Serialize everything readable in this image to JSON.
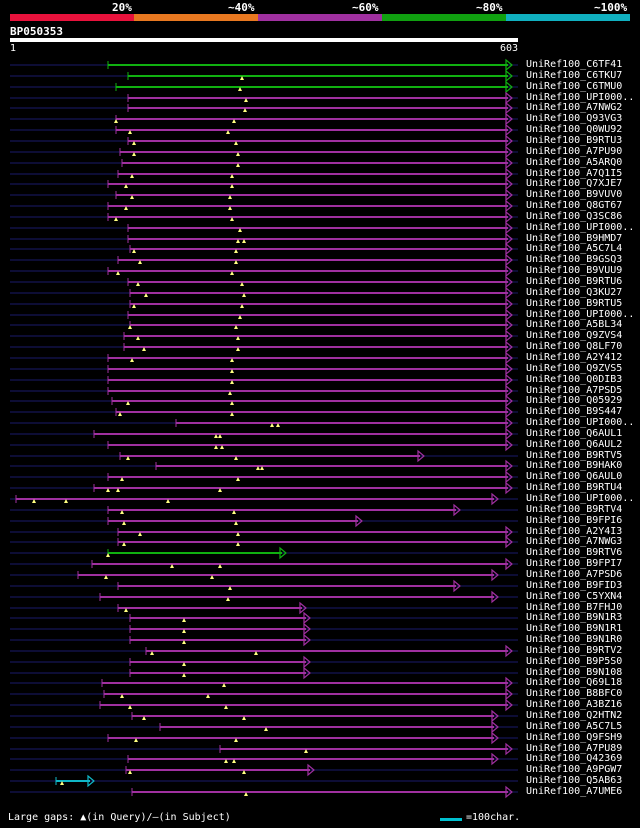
{
  "legend": {
    "labels": [
      "20%",
      "~40%",
      "~60%",
      "~80%",
      "~100%"
    ],
    "colors": [
      "#e8123c",
      "#e87820",
      "#a030a0",
      "#10a010",
      "#10b0c0"
    ]
  },
  "query": {
    "name": "BP050353",
    "start": "1",
    "end": "603"
  },
  "hits": [
    {
      "label": "UniRef100_C6TF41",
      "color": "green"
    },
    {
      "label": "UniRef100_C6TKU7",
      "color": "green"
    },
    {
      "label": "UniRef100_C6TMU0",
      "color": "green"
    },
    {
      "label": "UniRef100_UPI000..",
      "color": "purple"
    },
    {
      "label": "UniRef100_A7NWG2",
      "color": "purple"
    },
    {
      "label": "UniRef100_Q93VG3",
      "color": "purple"
    },
    {
      "label": "UniRef100_Q0WU92",
      "color": "purple"
    },
    {
      "label": "UniRef100_B9RTU3",
      "color": "purple"
    },
    {
      "label": "UniRef100_A7PU90",
      "color": "purple"
    },
    {
      "label": "UniRef100_A5ARQ0",
      "color": "purple"
    },
    {
      "label": "UniRef100_A7Q1I5",
      "color": "purple"
    },
    {
      "label": "UniRef100_Q7XJE7",
      "color": "purple"
    },
    {
      "label": "UniRef100_B9VUV0",
      "color": "purple"
    },
    {
      "label": "UniRef100_Q8GT67",
      "color": "purple"
    },
    {
      "label": "UniRef100_Q3SC86",
      "color": "purple"
    },
    {
      "label": "UniRef100_UPI000..",
      "color": "purple"
    },
    {
      "label": "UniRef100_B9HMD7",
      "color": "purple"
    },
    {
      "label": "UniRef100_A5C7L4",
      "color": "purple"
    },
    {
      "label": "UniRef100_B9GSQ3",
      "color": "purple"
    },
    {
      "label": "UniRef100_B9VUU9",
      "color": "purple"
    },
    {
      "label": "UniRef100_B9RTU6",
      "color": "purple"
    },
    {
      "label": "UniRef100_Q3KU27",
      "color": "purple"
    },
    {
      "label": "UniRef100_B9RTU5",
      "color": "purple"
    },
    {
      "label": "UniRef100_UPI000..",
      "color": "purple"
    },
    {
      "label": "UniRef100_A5BL34",
      "color": "purple"
    },
    {
      "label": "UniRef100_Q9ZVS4",
      "color": "purple"
    },
    {
      "label": "UniRef100_Q8LF70",
      "color": "purple"
    },
    {
      "label": "UniRef100_A2Y412",
      "color": "purple"
    },
    {
      "label": "UniRef100_Q9ZVS5",
      "color": "purple"
    },
    {
      "label": "UniRef100_Q0DIB3",
      "color": "purple"
    },
    {
      "label": "UniRef100_A7PSD5",
      "color": "purple"
    },
    {
      "label": "UniRef100_Q05929",
      "color": "purple"
    },
    {
      "label": "UniRef100_B9S447",
      "color": "purple"
    },
    {
      "label": "UniRef100_UPI000..",
      "color": "purple"
    },
    {
      "label": "UniRef100_Q6AUL1",
      "color": "purple"
    },
    {
      "label": "UniRef100_Q6AUL2",
      "color": "purple"
    },
    {
      "label": "UniRef100_B9RTV5",
      "color": "purple"
    },
    {
      "label": "UniRef100_B9HAK0",
      "color": "purple"
    },
    {
      "label": "UniRef100_Q6AUL0",
      "color": "purple"
    },
    {
      "label": "UniRef100_B9RTU4",
      "color": "purple"
    },
    {
      "label": "UniRef100_UPI000..",
      "color": "purple"
    },
    {
      "label": "UniRef100_B9RTV4",
      "color": "purple"
    },
    {
      "label": "UniRef100_B9FPI6",
      "color": "purple"
    },
    {
      "label": "UniRef100_A2Y4I3",
      "color": "purple"
    },
    {
      "label": "UniRef100_A7NWG3",
      "color": "purple"
    },
    {
      "label": "UniRef100_B9RTV6",
      "color": "green"
    },
    {
      "label": "UniRef100_B9FPI7",
      "color": "purple"
    },
    {
      "label": "UniRef100_A7PSD6",
      "color": "purple"
    },
    {
      "label": "UniRef100_B9FID3",
      "color": "purple"
    },
    {
      "label": "UniRef100_C5YXN4",
      "color": "purple"
    },
    {
      "label": "UniRef100_B7FHJ0",
      "color": "purple"
    },
    {
      "label": "UniRef100_B9N1R3",
      "color": "purple"
    },
    {
      "label": "UniRef100_B9N1R1",
      "color": "purple"
    },
    {
      "label": "UniRef100_B9N1R0",
      "color": "purple"
    },
    {
      "label": "UniRef100_B9RTV2",
      "color": "purple"
    },
    {
      "label": "UniRef100_B9P5S0",
      "color": "purple"
    },
    {
      "label": "UniRef100_B9N108",
      "color": "purple"
    },
    {
      "label": "UniRef100_Q69L18",
      "color": "purple"
    },
    {
      "label": "UniRef100_B8BFC0",
      "color": "purple"
    },
    {
      "label": "UniRef100_A3BZ16",
      "color": "purple"
    },
    {
      "label": "UniRef100_Q2HTN2",
      "color": "purple"
    },
    {
      "label": "UniRef100_A5C7L5",
      "color": "purple"
    },
    {
      "label": "UniRef100_Q9FSH9",
      "color": "purple"
    },
    {
      "label": "UniRef100_A7PU89",
      "color": "purple"
    },
    {
      "label": "UniRef100_Q42369",
      "color": "purple"
    },
    {
      "label": "UniRef100_A9PGW7",
      "color": "purple"
    },
    {
      "label": "UniRef100_Q5AB63",
      "color": "cyan"
    },
    {
      "label": "UniRef100_A7UME6",
      "color": "purple"
    }
  ],
  "palette": {
    "green": "#10b010",
    "purple": "#a030a0",
    "cyan": "#10b8c8",
    "faint": "#1a1a6a",
    "marker": "#ffff80"
  },
  "footer": {
    "text": "Large gaps: ▲(in Query)/—(in Subject)",
    "scale": "=100char."
  }
}
